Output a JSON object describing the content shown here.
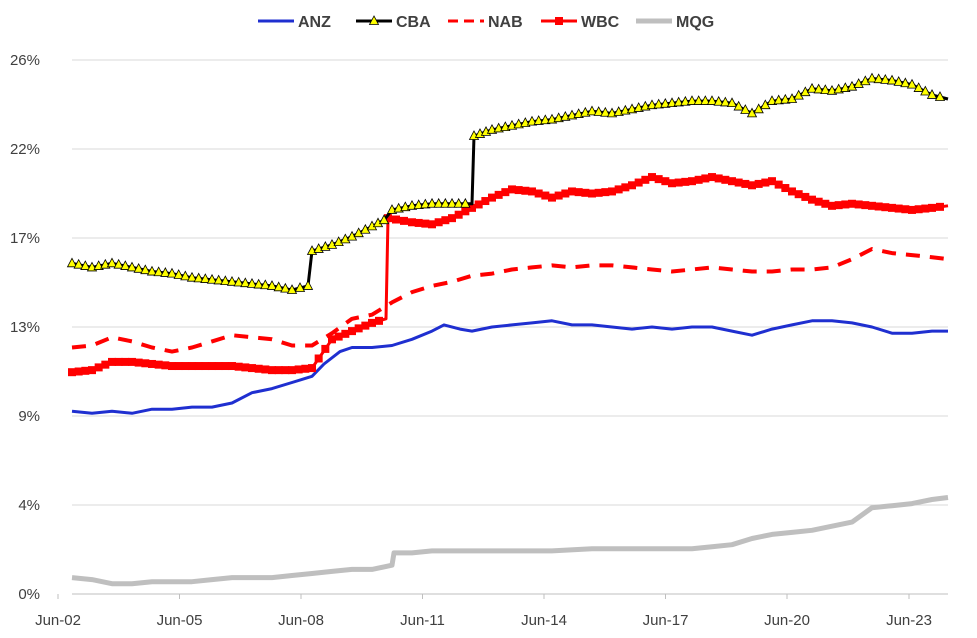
{
  "chart_data": {
    "type": "line",
    "title": "",
    "xlabel": "",
    "ylabel": "",
    "x_ticks": [
      "Jun-02",
      "Jun-05",
      "Jun-08",
      "Jun-11",
      "Jun-14",
      "Jun-17",
      "Jun-20",
      "Jun-23"
    ],
    "y_ticks": [
      "0%",
      "4%",
      "9%",
      "13%",
      "17%",
      "22%",
      "26%"
    ],
    "ylim": [
      0,
      26
    ],
    "xlim": [
      2002.0,
      2023.9
    ],
    "grid": "horizontal",
    "legend": "top-center",
    "series": [
      {
        "name": "ANZ",
        "color": "#1f2fd0",
        "marker": "none",
        "dash": "solid",
        "points": [
          [
            2002.0,
            8.9
          ],
          [
            2002.5,
            8.8
          ],
          [
            2003.0,
            8.9
          ],
          [
            2003.5,
            8.8
          ],
          [
            2004.0,
            9.0
          ],
          [
            2004.5,
            9.0
          ],
          [
            2005.0,
            9.1
          ],
          [
            2005.5,
            9.1
          ],
          [
            2006.0,
            9.3
          ],
          [
            2006.5,
            9.8
          ],
          [
            2007.0,
            10.0
          ],
          [
            2007.5,
            10.3
          ],
          [
            2008.0,
            10.6
          ],
          [
            2008.3,
            11.2
          ],
          [
            2008.7,
            11.8
          ],
          [
            2009.0,
            12.0
          ],
          [
            2009.5,
            12.0
          ],
          [
            2010.0,
            12.1
          ],
          [
            2010.5,
            12.4
          ],
          [
            2011.0,
            12.8
          ],
          [
            2011.3,
            13.1
          ],
          [
            2011.7,
            12.9
          ],
          [
            2012.0,
            12.8
          ],
          [
            2012.5,
            13.0
          ],
          [
            2013.0,
            13.1
          ],
          [
            2013.5,
            13.2
          ],
          [
            2014.0,
            13.3
          ],
          [
            2014.5,
            13.1
          ],
          [
            2015.0,
            13.1
          ],
          [
            2015.5,
            13.0
          ],
          [
            2016.0,
            12.9
          ],
          [
            2016.5,
            13.0
          ],
          [
            2017.0,
            12.9
          ],
          [
            2017.5,
            13.0
          ],
          [
            2018.0,
            13.0
          ],
          [
            2018.5,
            12.8
          ],
          [
            2019.0,
            12.6
          ],
          [
            2019.5,
            12.9
          ],
          [
            2020.0,
            13.1
          ],
          [
            2020.5,
            13.3
          ],
          [
            2021.0,
            13.3
          ],
          [
            2021.5,
            13.2
          ],
          [
            2022.0,
            13.0
          ],
          [
            2022.5,
            12.7
          ],
          [
            2023.0,
            12.7
          ],
          [
            2023.5,
            12.8
          ],
          [
            2023.9,
            12.8
          ]
        ]
      },
      {
        "name": "CBA",
        "color": "#000000",
        "marker": "triangle",
        "marker_fill": "#ffff00",
        "dash": "solid",
        "points": [
          [
            2002.0,
            16.1
          ],
          [
            2002.5,
            15.9
          ],
          [
            2003.0,
            16.1
          ],
          [
            2003.5,
            15.9
          ],
          [
            2004.0,
            15.7
          ],
          [
            2004.5,
            15.6
          ],
          [
            2005.0,
            15.4
          ],
          [
            2005.5,
            15.3
          ],
          [
            2006.0,
            15.2
          ],
          [
            2006.5,
            15.1
          ],
          [
            2007.0,
            15.0
          ],
          [
            2007.5,
            14.8
          ],
          [
            2007.9,
            15.0
          ],
          [
            2008.0,
            16.7
          ],
          [
            2008.5,
            17.0
          ],
          [
            2009.0,
            17.4
          ],
          [
            2009.5,
            17.9
          ],
          [
            2009.8,
            18.2
          ],
          [
            2010.0,
            18.7
          ],
          [
            2010.5,
            18.9
          ],
          [
            2011.0,
            19.0
          ],
          [
            2011.5,
            19.0
          ],
          [
            2012.0,
            19.0
          ],
          [
            2012.05,
            22.3
          ],
          [
            2012.5,
            22.6
          ],
          [
            2013.0,
            22.8
          ],
          [
            2013.5,
            23.0
          ],
          [
            2014.0,
            23.1
          ],
          [
            2014.5,
            23.3
          ],
          [
            2015.0,
            23.5
          ],
          [
            2015.5,
            23.4
          ],
          [
            2016.0,
            23.6
          ],
          [
            2016.5,
            23.8
          ],
          [
            2017.0,
            23.9
          ],
          [
            2017.5,
            24.0
          ],
          [
            2018.0,
            24.0
          ],
          [
            2018.5,
            23.9
          ],
          [
            2019.0,
            23.4
          ],
          [
            2019.5,
            24.0
          ],
          [
            2020.0,
            24.1
          ],
          [
            2020.5,
            24.6
          ],
          [
            2021.0,
            24.5
          ],
          [
            2021.5,
            24.7
          ],
          [
            2022.0,
            25.1
          ],
          [
            2022.5,
            25.0
          ],
          [
            2023.0,
            24.8
          ],
          [
            2023.5,
            24.3
          ],
          [
            2023.9,
            24.1
          ]
        ]
      },
      {
        "name": "NAB",
        "color": "#ff0000",
        "marker": "none",
        "dash": "dashed",
        "points": [
          [
            2002.0,
            12.0
          ],
          [
            2002.5,
            12.1
          ],
          [
            2003.0,
            12.5
          ],
          [
            2003.5,
            12.3
          ],
          [
            2004.0,
            12.0
          ],
          [
            2004.5,
            11.8
          ],
          [
            2005.0,
            12.0
          ],
          [
            2005.5,
            12.3
          ],
          [
            2006.0,
            12.6
          ],
          [
            2006.5,
            12.5
          ],
          [
            2007.0,
            12.4
          ],
          [
            2007.5,
            12.1
          ],
          [
            2008.0,
            12.1
          ],
          [
            2008.5,
            12.7
          ],
          [
            2009.0,
            13.4
          ],
          [
            2009.5,
            13.6
          ],
          [
            2010.0,
            14.2
          ],
          [
            2010.5,
            14.7
          ],
          [
            2011.0,
            15.0
          ],
          [
            2011.5,
            15.2
          ],
          [
            2012.0,
            15.5
          ],
          [
            2012.5,
            15.6
          ],
          [
            2013.0,
            15.8
          ],
          [
            2013.5,
            15.9
          ],
          [
            2014.0,
            16.0
          ],
          [
            2014.5,
            15.9
          ],
          [
            2015.0,
            16.0
          ],
          [
            2015.5,
            16.0
          ],
          [
            2016.0,
            15.9
          ],
          [
            2016.5,
            15.8
          ],
          [
            2017.0,
            15.7
          ],
          [
            2017.5,
            15.8
          ],
          [
            2018.0,
            15.9
          ],
          [
            2018.5,
            15.8
          ],
          [
            2019.0,
            15.7
          ],
          [
            2019.5,
            15.7
          ],
          [
            2020.0,
            15.8
          ],
          [
            2020.5,
            15.8
          ],
          [
            2021.0,
            15.9
          ],
          [
            2021.5,
            16.3
          ],
          [
            2022.0,
            16.8
          ],
          [
            2022.5,
            16.6
          ],
          [
            2023.0,
            16.5
          ],
          [
            2023.5,
            16.4
          ],
          [
            2023.9,
            16.3
          ]
        ]
      },
      {
        "name": "WBC",
        "color": "#ff0000",
        "marker": "square",
        "dash": "solid",
        "points": [
          [
            2002.0,
            10.8
          ],
          [
            2002.5,
            10.9
          ],
          [
            2003.0,
            11.3
          ],
          [
            2003.5,
            11.3
          ],
          [
            2004.0,
            11.2
          ],
          [
            2004.5,
            11.1
          ],
          [
            2005.0,
            11.1
          ],
          [
            2005.5,
            11.1
          ],
          [
            2006.0,
            11.1
          ],
          [
            2006.5,
            11.0
          ],
          [
            2007.0,
            10.9
          ],
          [
            2007.5,
            10.9
          ],
          [
            2008.0,
            11.0
          ],
          [
            2008.5,
            12.4
          ],
          [
            2009.0,
            12.8
          ],
          [
            2009.5,
            13.2
          ],
          [
            2009.85,
            13.4
          ],
          [
            2009.9,
            18.3
          ],
          [
            2010.5,
            18.1
          ],
          [
            2011.0,
            18.0
          ],
          [
            2011.5,
            18.3
          ],
          [
            2012.0,
            18.8
          ],
          [
            2012.5,
            19.3
          ],
          [
            2013.0,
            19.7
          ],
          [
            2013.5,
            19.6
          ],
          [
            2014.0,
            19.3
          ],
          [
            2014.5,
            19.6
          ],
          [
            2015.0,
            19.5
          ],
          [
            2015.5,
            19.6
          ],
          [
            2016.0,
            19.9
          ],
          [
            2016.5,
            20.3
          ],
          [
            2017.0,
            20.0
          ],
          [
            2017.5,
            20.1
          ],
          [
            2018.0,
            20.3
          ],
          [
            2018.5,
            20.1
          ],
          [
            2019.0,
            19.9
          ],
          [
            2019.5,
            20.1
          ],
          [
            2020.0,
            19.6
          ],
          [
            2020.5,
            19.2
          ],
          [
            2021.0,
            18.9
          ],
          [
            2021.5,
            19.0
          ],
          [
            2022.0,
            18.9
          ],
          [
            2022.5,
            18.8
          ],
          [
            2023.0,
            18.7
          ],
          [
            2023.5,
            18.8
          ],
          [
            2023.9,
            18.9
          ]
        ]
      },
      {
        "name": "MQG",
        "color": "#bfbfbf",
        "marker": "none",
        "dash": "solid",
        "points": [
          [
            2002.0,
            0.8
          ],
          [
            2002.5,
            0.7
          ],
          [
            2003.0,
            0.5
          ],
          [
            2003.5,
            0.5
          ],
          [
            2004.0,
            0.6
          ],
          [
            2004.5,
            0.6
          ],
          [
            2005.0,
            0.6
          ],
          [
            2005.5,
            0.7
          ],
          [
            2006.0,
            0.8
          ],
          [
            2006.5,
            0.8
          ],
          [
            2007.0,
            0.8
          ],
          [
            2007.5,
            0.9
          ],
          [
            2008.0,
            1.0
          ],
          [
            2008.5,
            1.1
          ],
          [
            2009.0,
            1.2
          ],
          [
            2009.5,
            1.2
          ],
          [
            2010.0,
            1.4
          ],
          [
            2010.05,
            2.0
          ],
          [
            2010.5,
            2.0
          ],
          [
            2011.0,
            2.1
          ],
          [
            2012.0,
            2.1
          ],
          [
            2013.0,
            2.1
          ],
          [
            2014.0,
            2.1
          ],
          [
            2015.0,
            2.2
          ],
          [
            2016.0,
            2.2
          ],
          [
            2017.0,
            2.2
          ],
          [
            2017.5,
            2.2
          ],
          [
            2018.0,
            2.3
          ],
          [
            2018.5,
            2.4
          ],
          [
            2019.0,
            2.7
          ],
          [
            2019.5,
            2.9
          ],
          [
            2020.0,
            3.0
          ],
          [
            2020.5,
            3.1
          ],
          [
            2021.0,
            3.3
          ],
          [
            2021.5,
            3.5
          ],
          [
            2022.0,
            4.2
          ],
          [
            2022.5,
            4.3
          ],
          [
            2023.0,
            4.4
          ],
          [
            2023.5,
            4.6
          ],
          [
            2023.9,
            4.7
          ]
        ]
      }
    ]
  }
}
